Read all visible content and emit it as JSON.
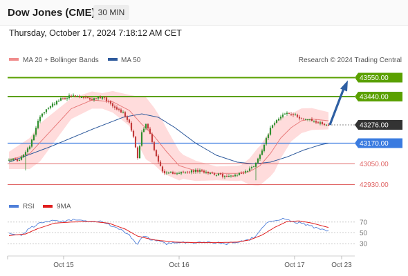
{
  "header": {
    "instrument": "Dow Jones (CME)",
    "timeframe": "30 MIN",
    "timestamp": "Thursday, October 17, 2024 7:18:12 AM CET"
  },
  "legend": {
    "items": [
      {
        "label": "MA 20 + Bollinger Bands",
        "color": "#f08c8c"
      },
      {
        "label": "MA 50",
        "color": "#2e5a9c"
      }
    ],
    "copyright": "Research © 2024 Trading Central"
  },
  "colors": {
    "target": "#5aa000",
    "current": "#333333",
    "pivot": "#3a7be0",
    "support": "#e06666",
    "ma20": "#e87c7c",
    "ma50": "#2e5a9c",
    "bands": "#ffd6d6",
    "candle_up": "#2f8f2f",
    "candle_down": "#c23a3a",
    "arrow": "#2e5fa3",
    "rsi": "#4f7fd9",
    "rsi_ma": "#e01e1e"
  },
  "chart_data": [
    {
      "type": "candlestick",
      "x_ticks": [
        "Oct 15",
        "Oct 16",
        "Oct 17",
        "Oct 23"
      ],
      "ylim": [
        42880,
        43620
      ],
      "levels": [
        {
          "label": "43550.00",
          "value": 43550,
          "kind": "target"
        },
        {
          "label": "43440.00",
          "value": 43440,
          "kind": "target"
        },
        {
          "label": "43276.00",
          "value": 43276,
          "kind": "current"
        },
        {
          "label": "43170.00",
          "value": 43170,
          "kind": "pivot"
        },
        {
          "label": "43050.00",
          "value": 43050,
          "kind": "support"
        },
        {
          "label": "42930.00",
          "value": 42930,
          "kind": "support"
        }
      ],
      "close_anchors": [
        [
          0,
          43080
        ],
        [
          5,
          43070
        ],
        [
          10,
          43150
        ],
        [
          15,
          43330
        ],
        [
          20,
          43390
        ],
        [
          25,
          43425
        ],
        [
          30,
          43445
        ],
        [
          35,
          43435
        ],
        [
          40,
          43425
        ],
        [
          45,
          43440
        ],
        [
          50,
          43390
        ],
        [
          55,
          43345
        ],
        [
          58,
          43290
        ],
        [
          60,
          43210
        ],
        [
          62,
          43080
        ],
        [
          64,
          43230
        ],
        [
          66,
          43280
        ],
        [
          68,
          43230
        ],
        [
          70,
          43130
        ],
        [
          72,
          43060
        ],
        [
          75,
          42990
        ],
        [
          80,
          43000
        ],
        [
          85,
          43000
        ],
        [
          90,
          43010
        ],
        [
          95,
          43005
        ],
        [
          100,
          42990
        ],
        [
          105,
          42975
        ],
        [
          110,
          42990
        ],
        [
          115,
          43010
        ],
        [
          118,
          43040
        ],
        [
          121,
          43100
        ],
        [
          124,
          43200
        ],
        [
          127,
          43280
        ],
        [
          131,
          43330
        ],
        [
          134,
          43345
        ],
        [
          138,
          43330
        ],
        [
          142,
          43310
        ],
        [
          146,
          43300
        ],
        [
          150,
          43285
        ],
        [
          154,
          43276
        ]
      ],
      "ma20_anchors": [
        [
          0,
          43070
        ],
        [
          10,
          43110
        ],
        [
          20,
          43240
        ],
        [
          30,
          43370
        ],
        [
          40,
          43420
        ],
        [
          50,
          43410
        ],
        [
          58,
          43360
        ],
        [
          64,
          43280
        ],
        [
          70,
          43210
        ],
        [
          76,
          43120
        ],
        [
          82,
          43040
        ],
        [
          90,
          43010
        ],
        [
          100,
          42995
        ],
        [
          110,
          42995
        ],
        [
          116,
          43005
        ],
        [
          121,
          43040
        ],
        [
          126,
          43110
        ],
        [
          131,
          43200
        ],
        [
          136,
          43260
        ],
        [
          141,
          43300
        ],
        [
          146,
          43310
        ],
        [
          154,
          43300
        ]
      ],
      "ma50_anchors": [
        [
          0,
          43060
        ],
        [
          20,
          43150
        ],
        [
          40,
          43250
        ],
        [
          55,
          43320
        ],
        [
          64,
          43340
        ],
        [
          72,
          43320
        ],
        [
          80,
          43260
        ],
        [
          90,
          43170
        ],
        [
          100,
          43100
        ],
        [
          110,
          43060
        ],
        [
          118,
          43050
        ],
        [
          126,
          43060
        ],
        [
          134,
          43090
        ],
        [
          142,
          43130
        ],
        [
          150,
          43160
        ],
        [
          154,
          43170
        ]
      ],
      "band_width_anchors": [
        [
          0,
          50
        ],
        [
          15,
          110
        ],
        [
          30,
          60
        ],
        [
          45,
          45
        ],
        [
          58,
          90
        ],
        [
          66,
          180
        ],
        [
          74,
          150
        ],
        [
          84,
          70
        ],
        [
          100,
          40
        ],
        [
          112,
          45
        ],
        [
          120,
          110
        ],
        [
          128,
          140
        ],
        [
          136,
          80
        ],
        [
          154,
          50
        ]
      ],
      "forecast": {
        "from": 43276,
        "to": 43550
      }
    },
    {
      "type": "line",
      "title": "RSI",
      "series": [
        {
          "name": "RSI"
        },
        {
          "name": "9MA"
        }
      ],
      "ylim": [
        15,
        85
      ],
      "ticks": [
        "70",
        "50",
        "30"
      ],
      "rsi_anchors": [
        [
          0,
          48
        ],
        [
          6,
          45
        ],
        [
          10,
          58
        ],
        [
          15,
          68
        ],
        [
          20,
          72
        ],
        [
          25,
          70
        ],
        [
          30,
          74
        ],
        [
          35,
          72
        ],
        [
          40,
          70
        ],
        [
          45,
          71
        ],
        [
          50,
          62
        ],
        [
          54,
          55
        ],
        [
          58,
          45
        ],
        [
          60,
          38
        ],
        [
          62,
          28
        ],
        [
          64,
          42
        ],
        [
          66,
          45
        ],
        [
          68,
          38
        ],
        [
          72,
          35
        ],
        [
          76,
          30
        ],
        [
          80,
          32
        ],
        [
          85,
          33
        ],
        [
          90,
          31
        ],
        [
          95,
          33
        ],
        [
          100,
          32
        ],
        [
          105,
          30
        ],
        [
          110,
          34
        ],
        [
          115,
          36
        ],
        [
          118,
          42
        ],
        [
          121,
          55
        ],
        [
          124,
          66
        ],
        [
          127,
          72
        ],
        [
          131,
          76
        ],
        [
          134,
          74
        ],
        [
          138,
          70
        ],
        [
          142,
          67
        ],
        [
          146,
          62
        ],
        [
          150,
          56
        ],
        [
          154,
          54
        ]
      ],
      "rsi_ma_anchors": [
        [
          0,
          45
        ],
        [
          8,
          48
        ],
        [
          14,
          58
        ],
        [
          22,
          68
        ],
        [
          30,
          70
        ],
        [
          40,
          71
        ],
        [
          48,
          68
        ],
        [
          56,
          57
        ],
        [
          62,
          44
        ],
        [
          70,
          37
        ],
        [
          80,
          33
        ],
        [
          90,
          32
        ],
        [
          100,
          32
        ],
        [
          110,
          33
        ],
        [
          116,
          37
        ],
        [
          122,
          46
        ],
        [
          128,
          60
        ],
        [
          134,
          71
        ],
        [
          140,
          72
        ],
        [
          146,
          68
        ],
        [
          154,
          60
        ]
      ]
    }
  ]
}
